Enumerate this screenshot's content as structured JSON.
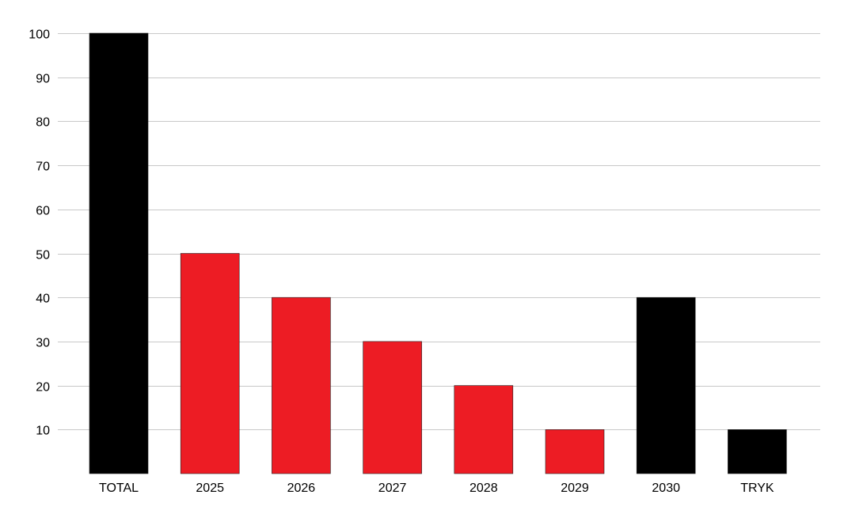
{
  "chart_data": {
    "type": "bar",
    "title": "",
    "xlabel": "",
    "ylabel": "",
    "categories": [
      "TOTAL",
      "2025",
      "2026",
      "2027",
      "2028",
      "2029",
      "2030",
      "TRYK"
    ],
    "values": [
      100,
      50,
      40,
      30,
      20,
      10,
      40,
      10
    ],
    "bar_colors": [
      "#000000",
      "#ed1c24",
      "#ed1c24",
      "#ed1c24",
      "#ed1c24",
      "#ed1c24",
      "#000000",
      "#000000"
    ],
    "ylim": [
      0,
      100
    ],
    "yticks": [
      10,
      20,
      30,
      40,
      50,
      60,
      70,
      80,
      90,
      100
    ],
    "grid": true,
    "legend": "none"
  },
  "colors": {
    "black": "#000000",
    "red": "#ed1c24",
    "grid": "#c8c8c8"
  }
}
